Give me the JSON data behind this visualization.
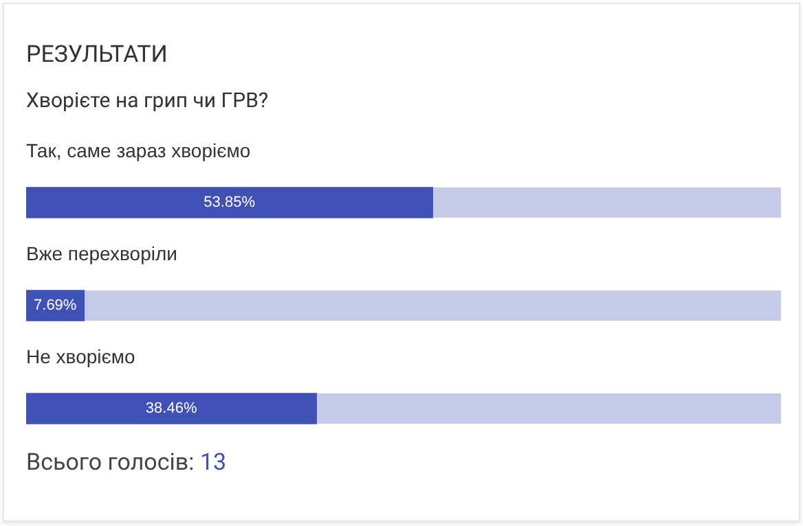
{
  "chart_data": {
    "type": "bar",
    "orientation": "horizontal",
    "title": "РЕЗУЛЬТАТИ",
    "subtitle": "Хворієте на грип чи ГРВ?",
    "categories": [
      "Так, саме зараз хворіємо",
      "Вже перехворіли",
      "Не хворіємо"
    ],
    "values": [
      53.85,
      7.69,
      38.46
    ],
    "value_labels": [
      "53.85%",
      "7.69%",
      "38.46%"
    ],
    "color": "#3f51b5",
    "xlim": [
      0,
      100
    ],
    "tick_labels": false,
    "legend": false,
    "annotations": [
      "Всього голосів: 13"
    ]
  }
}
